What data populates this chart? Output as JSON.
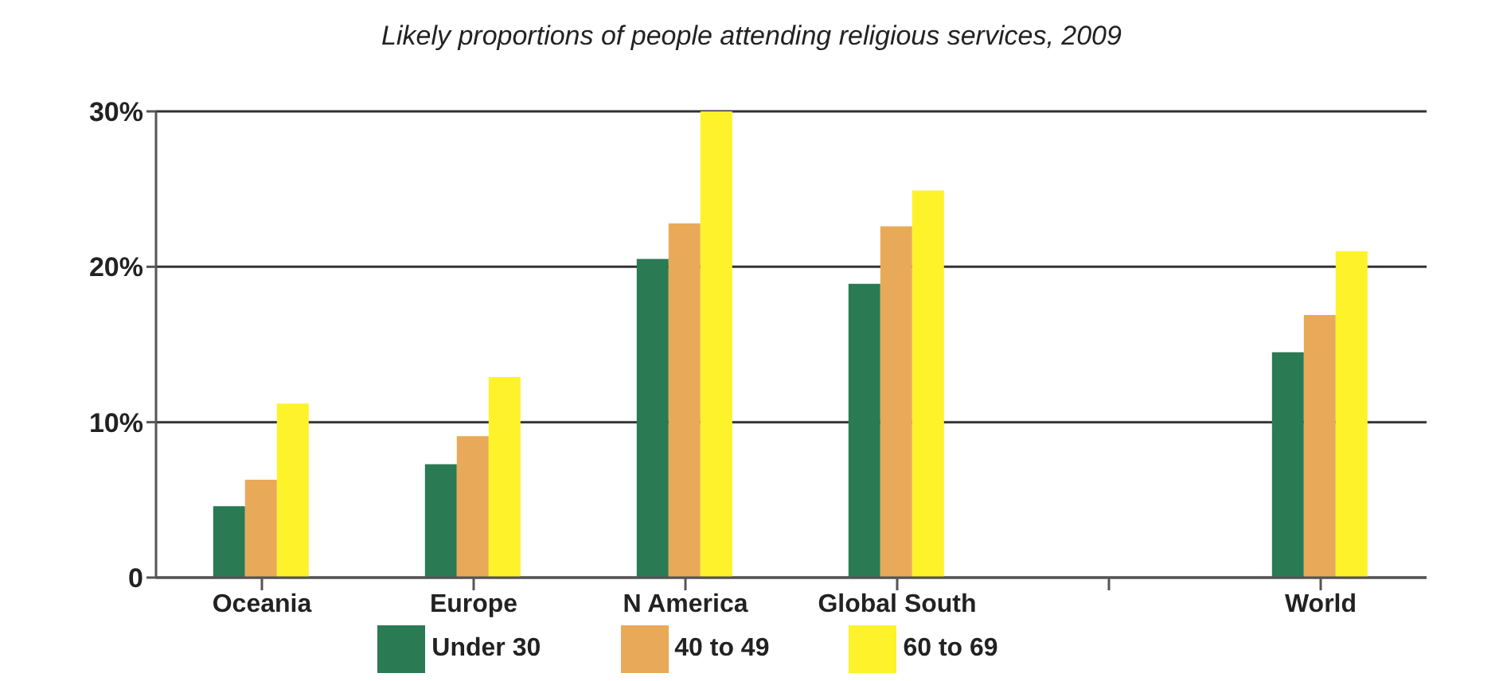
{
  "chart_data": {
    "type": "bar",
    "title": "Likely proportions of people attending religious services, 2009",
    "categories": [
      "Oceania",
      "Europe",
      "N America",
      "Global South",
      null,
      "World"
    ],
    "series": [
      {
        "name": "Under 30",
        "color": "#2a7a54",
        "values": [
          4.6,
          7.3,
          20.5,
          18.9,
          null,
          14.5
        ]
      },
      {
        "name": "40 to 49",
        "color": "#e8aa58",
        "values": [
          6.3,
          9.1,
          22.8,
          22.6,
          null,
          16.9
        ]
      },
      {
        "name": "60 to 69",
        "color": "#fef22a",
        "values": [
          11.2,
          12.9,
          30,
          24.9,
          null,
          21.0
        ]
      }
    ],
    "ylim": [
      0,
      30
    ],
    "yticks": [
      {
        "value": 0,
        "label": "0"
      },
      {
        "value": 10,
        "label": "10%"
      },
      {
        "value": 20,
        "label": "20%"
      },
      {
        "value": 30,
        "label": "30%"
      }
    ],
    "grid": "y",
    "legend": "bottom"
  }
}
